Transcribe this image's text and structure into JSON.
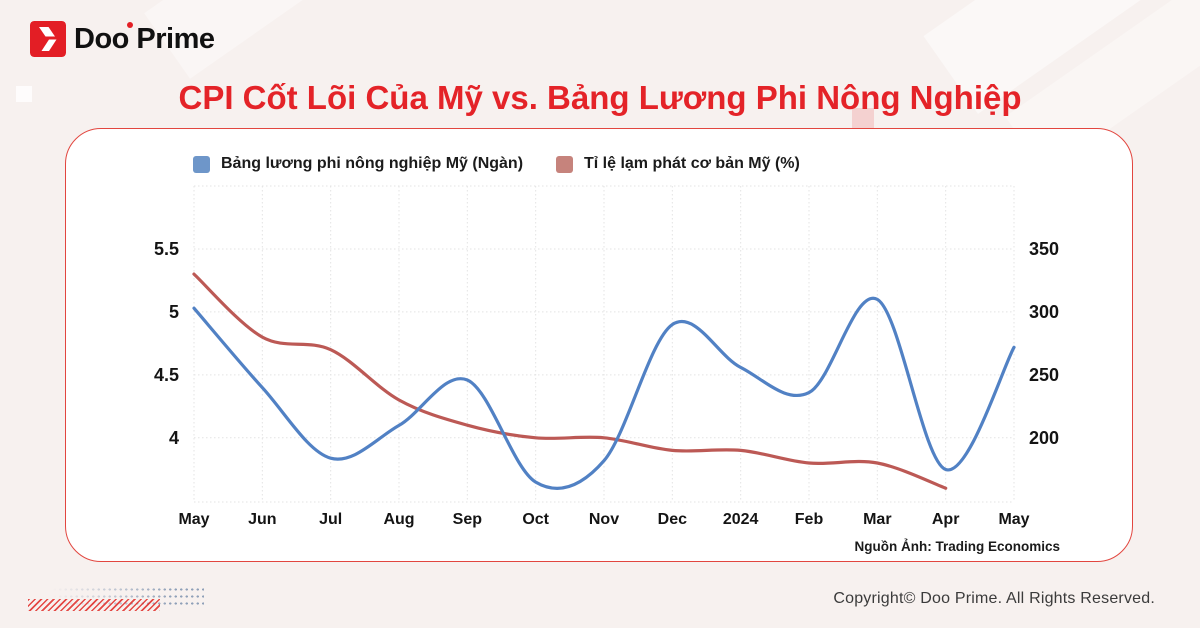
{
  "page": {
    "background": "#f7f1ef",
    "accent_red": "#e42328"
  },
  "logo": {
    "brand": "Doo Prime",
    "icon": "doo-prime-arrow",
    "icon_color": "#e31e25"
  },
  "title": "CPI Cốt Lõi Của Mỹ vs. Bảng Lương Phi Nông Nghiệp",
  "card": {
    "border_color": "#e2463f",
    "background": "#ffffff"
  },
  "source_note": "Nguồn Ảnh: Trading Economics",
  "footer": {
    "copyright": "Copyright© Doo Prime. All Rights Reserved."
  },
  "chart_data": {
    "type": "line",
    "title": "CPI Cốt Lõi Của Mỹ vs. Bảng Lương Phi Nông Nghiệp",
    "categories": [
      "May",
      "Jun",
      "Jul",
      "Aug",
      "Sep",
      "Oct",
      "Nov",
      "Dec",
      "2024",
      "Feb",
      "Mar",
      "Apr",
      "May"
    ],
    "series": [
      {
        "name": "Bảng lương phi nông nghiệp Mỹ (Ngàn)",
        "axis": "right",
        "color": "#5181c4",
        "swatch": "#6e96c9",
        "values": [
          303,
          240,
          184,
          210,
          246,
          165,
          182,
          290,
          256,
          236,
          310,
          175,
          272
        ]
      },
      {
        "name": "Tỉ lệ lạm phát cơ bản Mỹ (%)",
        "axis": "left",
        "color": "#bc5955",
        "swatch": "#c6837c",
        "values": [
          5.3,
          4.8,
          4.7,
          4.3,
          4.1,
          4.0,
          4.0,
          3.9,
          3.9,
          3.8,
          3.8,
          3.6,
          null
        ]
      }
    ],
    "left_axis": {
      "ticks": [
        5.5,
        5,
        4.5,
        4
      ],
      "range": [
        3.49,
        6.0
      ]
    },
    "right_axis": {
      "ticks": [
        350,
        300,
        250,
        200
      ],
      "range": [
        149.2,
        400
      ]
    },
    "grid": true,
    "grid_color": "#e3e3e3",
    "legend_position": "top",
    "smoothing": "spline"
  }
}
